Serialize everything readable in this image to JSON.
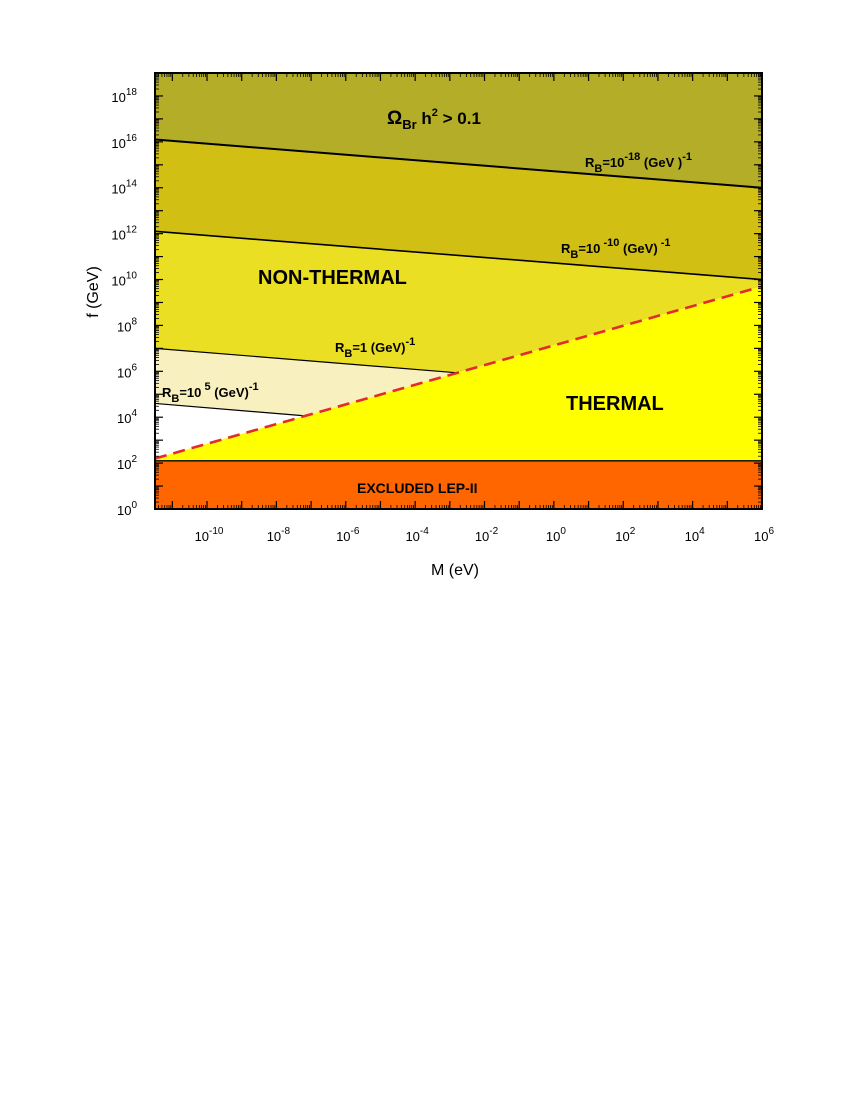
{
  "chart_data": {
    "type": "area",
    "xlabel": "M (eV)",
    "ylabel": "f (GeV)",
    "x_scale": "log",
    "y_scale": "log",
    "xlim_log10": [
      -11.5,
      6
    ],
    "ylim_log10": [
      0,
      19
    ],
    "grid": false,
    "x_ticks": [
      {
        "base": "10",
        "exp": "-10",
        "value_log10": -10
      },
      {
        "base": "10",
        "exp": "-8",
        "value_log10": -8
      },
      {
        "base": "10",
        "exp": "-6",
        "value_log10": -6
      },
      {
        "base": "10",
        "exp": "-4",
        "value_log10": -4
      },
      {
        "base": "10",
        "exp": "-2",
        "value_log10": -2
      },
      {
        "base": "10",
        "exp": "0",
        "value_log10": 0
      },
      {
        "base": "10",
        "exp": "2",
        "value_log10": 2
      },
      {
        "base": "10",
        "exp": "4",
        "value_log10": 4
      },
      {
        "base": "10",
        "exp": "6",
        "value_log10": 6
      }
    ],
    "y_ticks": [
      {
        "base": "10",
        "exp": "0",
        "value_log10": 0
      },
      {
        "base": "10",
        "exp": "2",
        "value_log10": 2
      },
      {
        "base": "10",
        "exp": "4",
        "value_log10": 4
      },
      {
        "base": "10",
        "exp": "6",
        "value_log10": 6
      },
      {
        "base": "10",
        "exp": "8",
        "value_log10": 8
      },
      {
        "base": "10",
        "exp": "10",
        "value_log10": 10
      },
      {
        "base": "10",
        "exp": "12",
        "value_log10": 12
      },
      {
        "base": "10",
        "exp": "14",
        "value_log10": 14
      },
      {
        "base": "10",
        "exp": "16",
        "value_log10": 16
      },
      {
        "base": "10",
        "exp": "18",
        "value_log10": 18
      }
    ],
    "lines": [
      {
        "id": "rb-1e-18",
        "log10_M": [
          -11.5,
          6
        ],
        "log10_f": [
          16.1,
          14.0
        ],
        "style": "solid",
        "width": 2
      },
      {
        "id": "rb-1e-10",
        "log10_M": [
          -11.5,
          6
        ],
        "log10_f": [
          12.1,
          10.0
        ],
        "style": "solid",
        "width": 1.6
      },
      {
        "id": "rb-1",
        "log10_M": [
          -11.5,
          -2.5
        ],
        "log10_f": [
          7.0,
          5.9
        ],
        "style": "solid",
        "width": 1.2
      },
      {
        "id": "rb-1e5",
        "log10_M": [
          -11.5,
          -7.5
        ],
        "log10_f": [
          4.6,
          4.1
        ],
        "style": "solid",
        "width": 1.2
      },
      {
        "id": "thermal-boundary",
        "log10_M": [
          -11.5,
          6
        ],
        "log10_f": [
          2.2,
          9.7
        ],
        "style": "dashed",
        "color": "#e32b2b",
        "width": 2.6
      },
      {
        "id": "lep-limit",
        "log10_M": [
          -11.5,
          6
        ],
        "log10_f": [
          2.1,
          2.1
        ],
        "style": "solid",
        "width": 1.4
      }
    ],
    "regions": [
      {
        "id": "overclosure",
        "color": "#b3ad28"
      },
      {
        "id": "between-1e-18-1e-10",
        "color": "#d2bf14"
      },
      {
        "id": "non-thermal",
        "color": "#ebdf23"
      },
      {
        "id": "between-1-1e5",
        "color": "#f8f1bf"
      },
      {
        "id": "below-1e5",
        "color": "#ffffff"
      },
      {
        "id": "thermal",
        "color": "#ffff00"
      },
      {
        "id": "excluded",
        "color": "#ff6600"
      }
    ],
    "labels": {
      "omega": {
        "main": "Ω",
        "sub": "Br",
        "mid": " h",
        "sup": "2",
        "tail": " > 0.1"
      },
      "non_thermal": "NON-THERMAL",
      "thermal": "THERMAL",
      "excluded": "EXCLUDED LEP-II",
      "rb_1e-18": {
        "r": "R",
        "sub": "B",
        "pre": "=10",
        "sup": "-18",
        "unit": " (GeV )",
        "unit_sup": "-1"
      },
      "rb_1e-10": {
        "r": "R",
        "sub": "B",
        "pre": "=10",
        "sup": " -10",
        "unit": " (GeV)",
        "unit_sup": " -1"
      },
      "rb_1": {
        "r": "R",
        "sub": "B",
        "pre": "=1 (GeV)",
        "sup": "-1"
      },
      "rb_1e5": {
        "r": "R",
        "sub": "B",
        "pre": "=10",
        "sup": " 5",
        "unit": " (GeV)",
        "unit_sup": "-1"
      }
    },
    "colors": {
      "axis": "#000000",
      "dashed_line": "#e32b2b"
    }
  }
}
